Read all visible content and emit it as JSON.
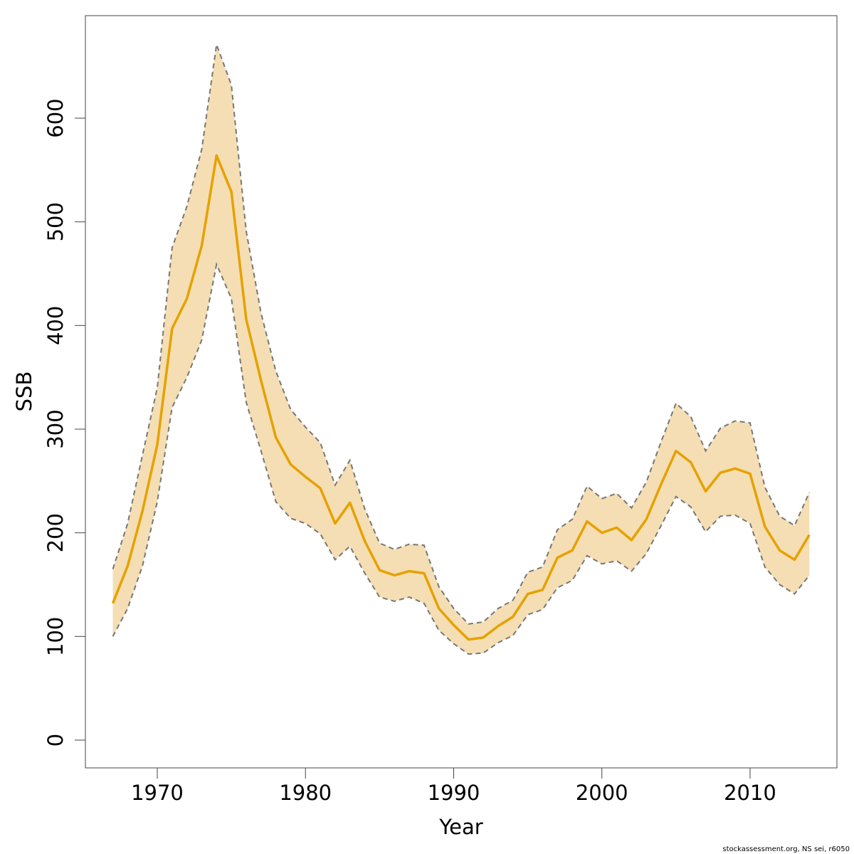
{
  "chart_data": {
    "type": "line",
    "x_label": "Year",
    "y_label": "SSB",
    "footer": "stockassessment.org, NS sei, r6050",
    "x": [
      1967,
      1968,
      1969,
      1970,
      1971,
      1972,
      1973,
      1974,
      1975,
      1976,
      1977,
      1978,
      1979,
      1980,
      1981,
      1982,
      1983,
      1984,
      1985,
      1986,
      1987,
      1988,
      1989,
      1990,
      1991,
      1992,
      1993,
      1994,
      1995,
      1996,
      1997,
      1998,
      1999,
      2000,
      2001,
      2002,
      2003,
      2004,
      2005,
      2006,
      2007,
      2008,
      2009,
      2010,
      2011,
      2012,
      2013,
      2014
    ],
    "values": [
      132,
      168,
      221,
      285,
      397,
      426,
      477,
      564,
      529,
      406,
      347,
      292,
      266,
      254,
      243,
      209,
      229,
      192,
      164,
      159,
      163,
      161,
      127,
      111,
      97,
      99,
      110,
      119,
      141,
      145,
      176,
      183,
      211,
      200,
      205,
      193,
      213,
      247,
      279,
      268,
      240,
      258,
      262,
      257,
      206,
      183,
      174,
      198
    ],
    "upper": [
      165,
      209,
      275,
      340,
      475,
      515,
      570,
      671,
      632,
      491,
      412,
      356,
      319,
      302,
      287,
      246,
      270,
      223,
      190,
      184,
      189,
      188,
      148,
      127,
      112,
      114,
      127,
      135,
      162,
      167,
      203,
      213,
      245,
      233,
      238,
      224,
      249,
      288,
      325,
      312,
      279,
      301,
      308,
      306,
      244,
      216,
      207,
      239
    ],
    "lower": [
      100,
      127,
      168,
      230,
      321,
      350,
      386,
      459,
      426,
      326,
      279,
      230,
      214,
      209,
      199,
      174,
      187,
      161,
      138,
      134,
      138,
      132,
      106,
      93,
      83,
      84,
      94,
      101,
      121,
      126,
      147,
      154,
      178,
      170,
      173,
      163,
      180,
      207,
      235,
      225,
      201,
      216,
      217,
      209,
      167,
      150,
      141,
      159
    ],
    "color": "#e6a100",
    "band_color": "#f5deb3",
    "bound_color": "#777777",
    "xlim": [
      1965.15,
      2015.86
    ],
    "ylim": [
      -26.8,
      698.9
    ],
    "xticks": [
      1970,
      1980,
      1990,
      2000,
      2010
    ],
    "yticks": [
      0,
      100,
      200,
      300,
      400,
      500,
      600
    ]
  }
}
